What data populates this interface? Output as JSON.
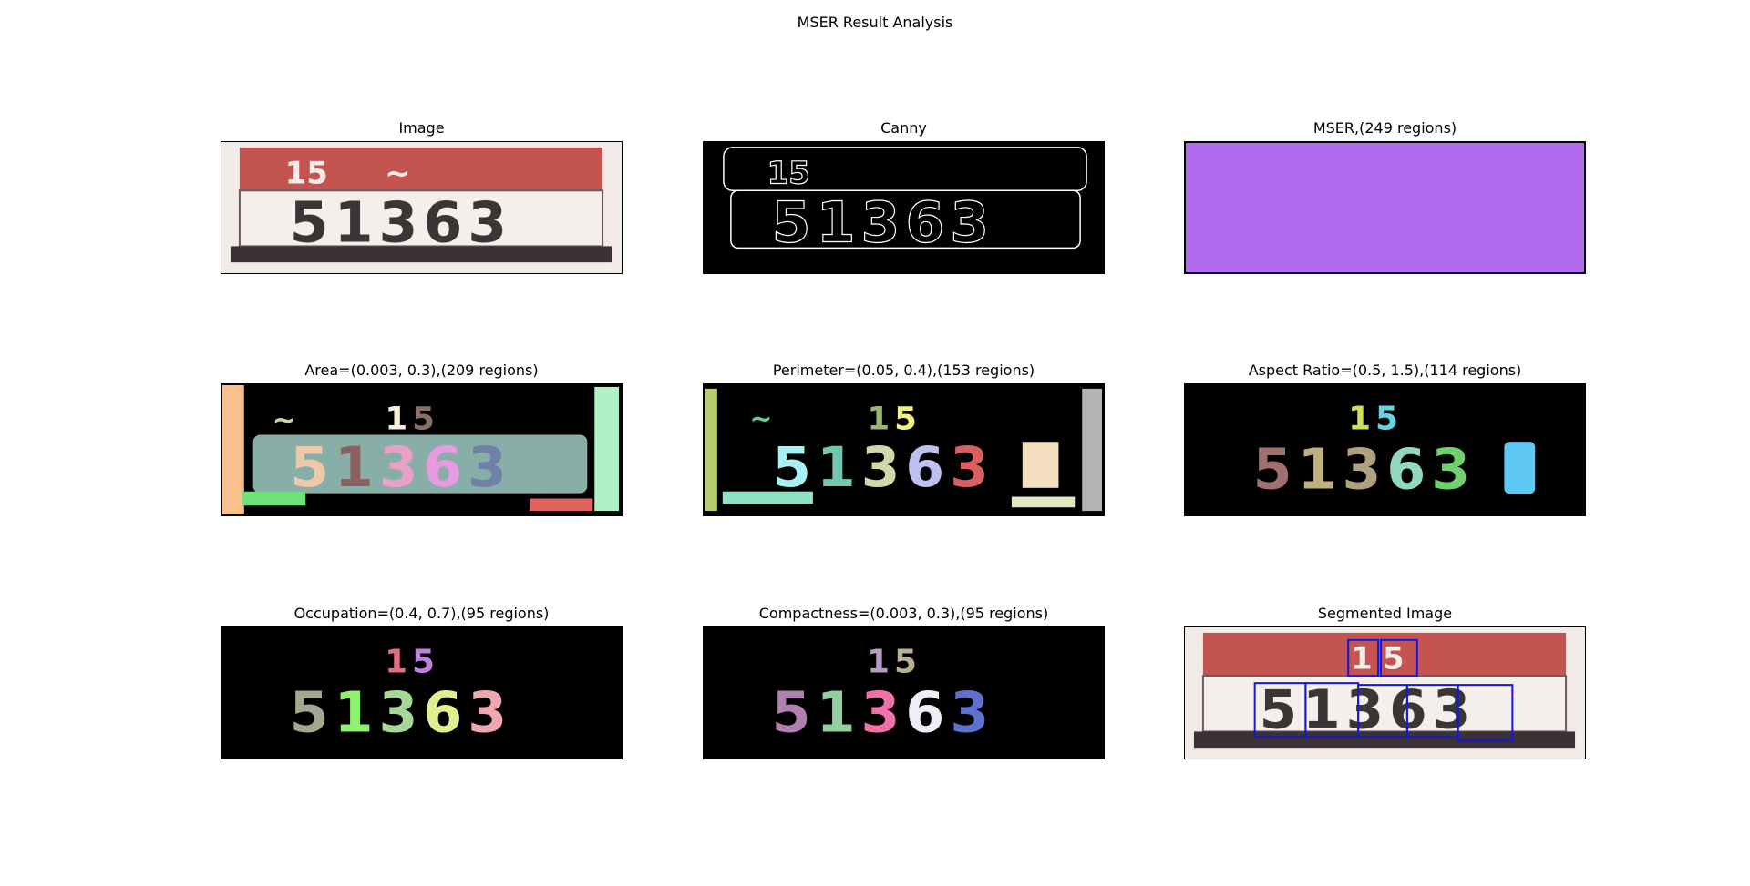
{
  "figure": {
    "title": "MSER Result Analysis"
  },
  "panels": [
    {
      "title": "Image"
    },
    {
      "title": "Canny"
    },
    {
      "title": "MSER,(249 regions)"
    },
    {
      "title": "Area=(0.003, 0.3),(209 regions)"
    },
    {
      "title": "Perimeter=(0.05, 0.4),(153 regions)"
    },
    {
      "title": "Aspect Ratio=(0.5, 1.5),(114 regions)"
    },
    {
      "title": "Occupation=(0.4, 0.7),(95 regions)"
    },
    {
      "title": "Compactness=(0.003, 0.3),(95 regions)"
    },
    {
      "title": "Segmented Image"
    }
  ],
  "plate": {
    "top_number": "15",
    "main_number": "51363",
    "main_digits": [
      "5",
      "1",
      "3",
      "6",
      "3"
    ],
    "top_digits": [
      "1",
      "5"
    ]
  },
  "colors": {
    "mser_fill": "#B06AF0",
    "segment_box": "#1515E0",
    "plate_red": "#C0504D",
    "plate_white": "#F2EDEA"
  }
}
